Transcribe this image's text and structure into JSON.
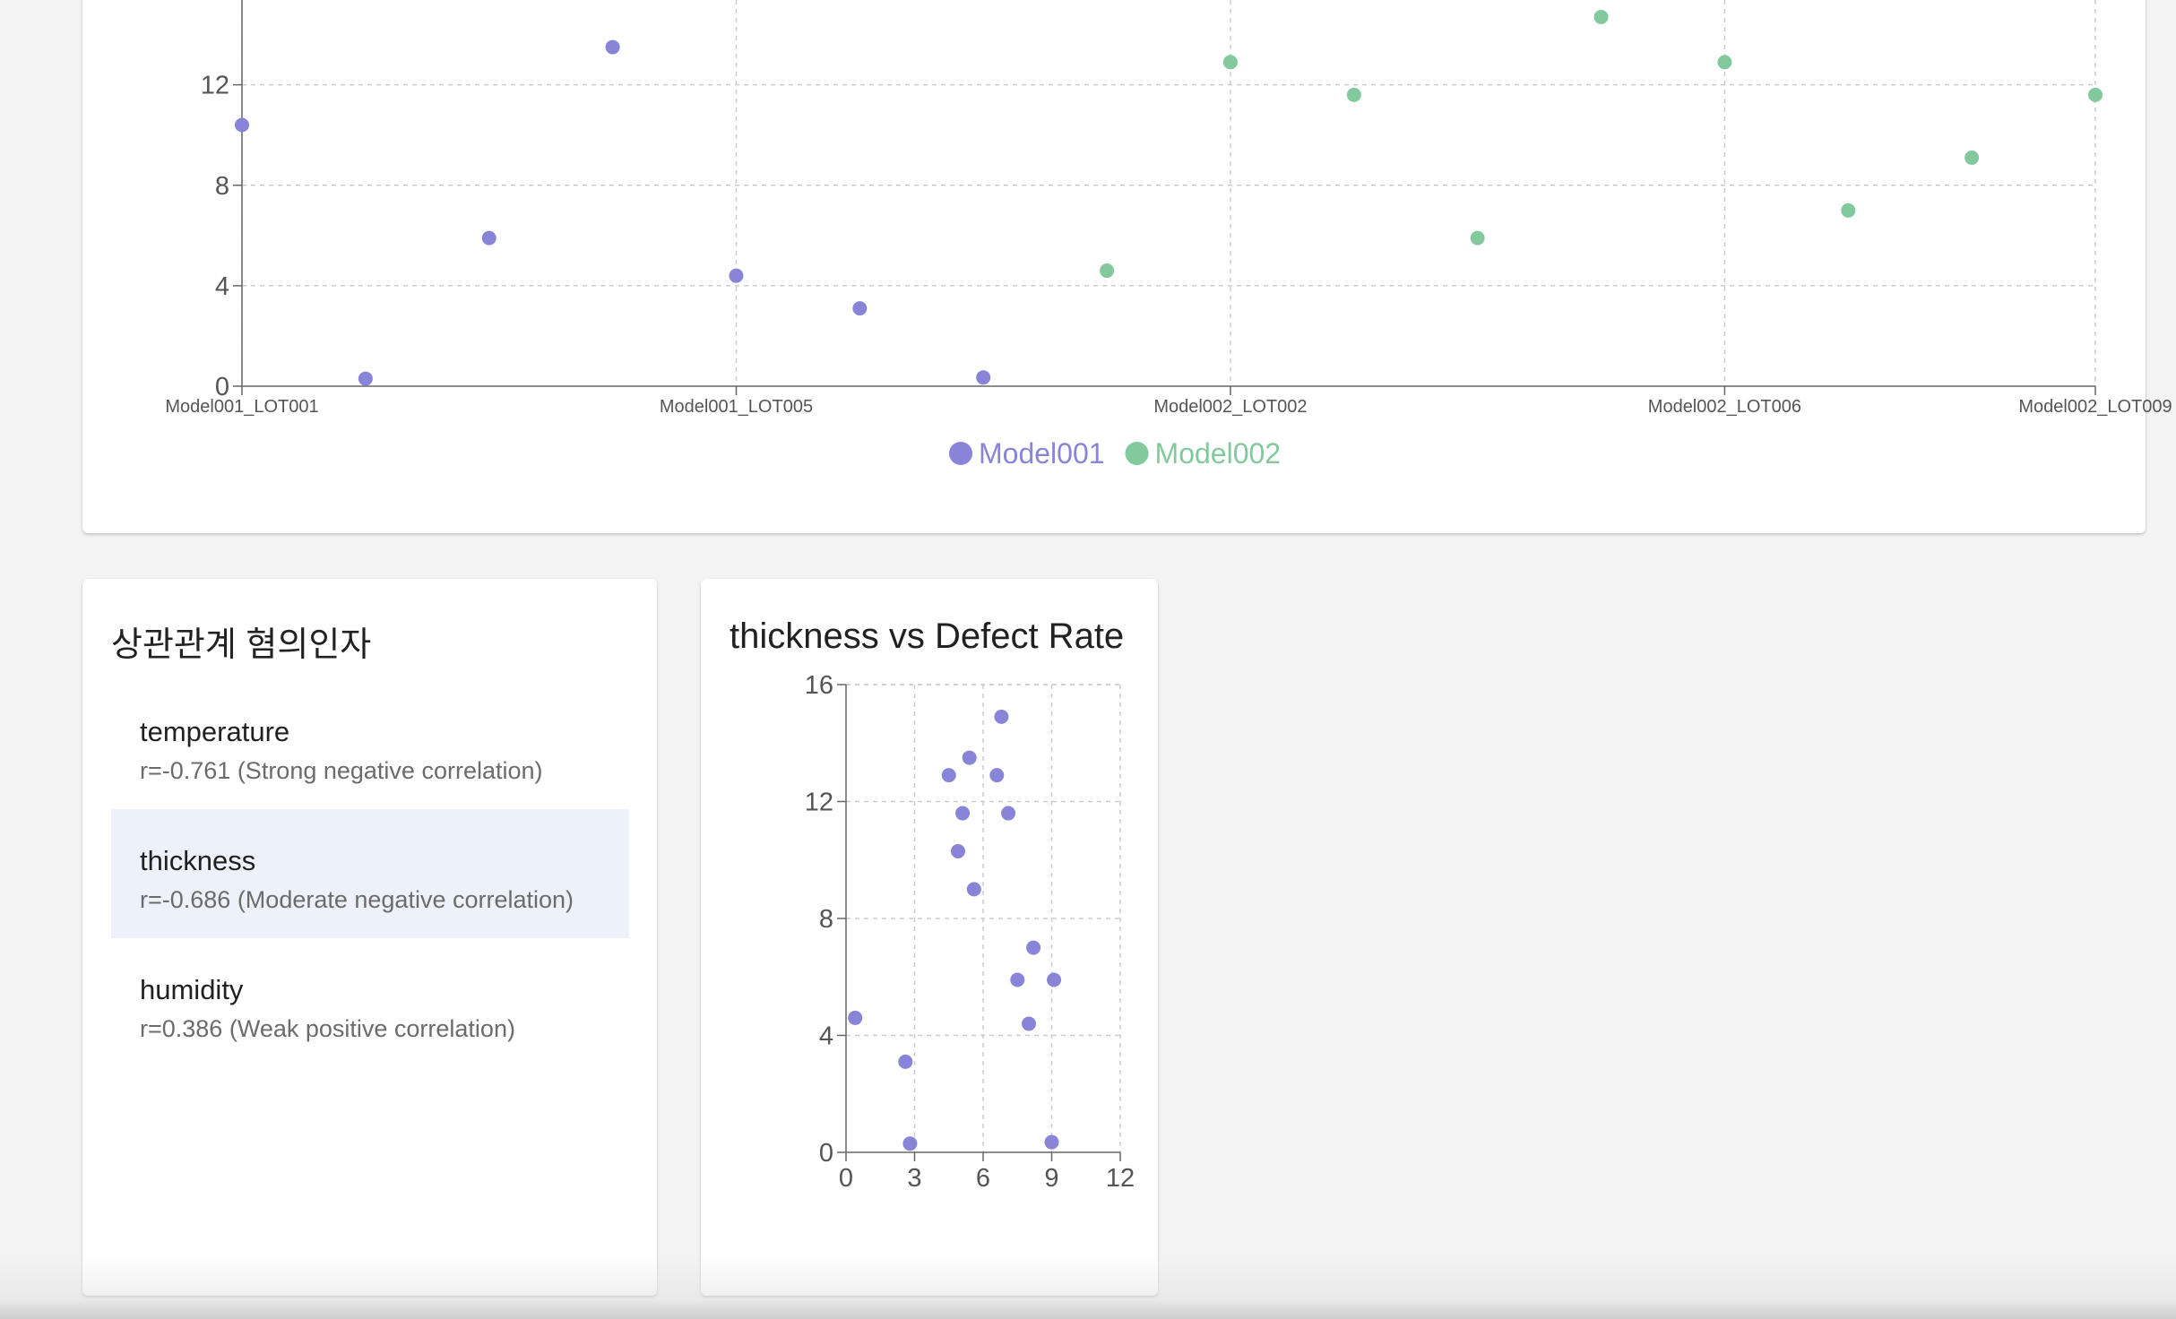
{
  "colors": {
    "model001": "#8884d8",
    "model002": "#82ca9d",
    "selected_bg": "#edf2fa",
    "grid": "#cccccc",
    "axis": "#666666"
  },
  "chart_data": [
    {
      "type": "scatter",
      "title": "",
      "xlabel": "",
      "ylabel": "",
      "x_tick_labels": [
        "Model001_LOT001",
        "Model001_LOT005",
        "Model002_LOT002",
        "Model002_LOT006",
        "Model002_LOT009"
      ],
      "y_ticks": [
        0,
        4,
        8,
        12
      ],
      "ylim": [
        0,
        16
      ],
      "grid": true,
      "legend_position": "bottom-center",
      "series": [
        {
          "name": "Model001",
          "color": "#8884d8",
          "points": [
            {
              "x": "Model001_LOT001",
              "y": 10.4
            },
            {
              "x": "Model001_LOT002",
              "y": 0.3
            },
            {
              "x": "Model001_LOT003",
              "y": 5.9
            },
            {
              "x": "Model001_LOT004",
              "y": 13.5
            },
            {
              "x": "Model001_LOT005",
              "y": 4.4
            },
            {
              "x": "Model001_LOT006",
              "y": 3.1
            },
            {
              "x": "Model001_LOT007",
              "y": 0.35
            }
          ]
        },
        {
          "name": "Model002",
          "color": "#82ca9d",
          "points": [
            {
              "x": "Model001_LOT008",
              "y": 4.6
            },
            {
              "x": "Model002_LOT002",
              "y": 12.9
            },
            {
              "x": "Model002_LOT003",
              "y": 11.6
            },
            {
              "x": "Model002_LOT004",
              "y": 5.9
            },
            {
              "x": "Model002_LOT005",
              "y": 14.7
            },
            {
              "x": "Model002_LOT006",
              "y": 12.9
            },
            {
              "x": "Model002_LOT007",
              "y": 7.0
            },
            {
              "x": "Model002_LOT008",
              "y": 9.1
            },
            {
              "x": "Model002_LOT009",
              "y": 11.6
            }
          ]
        }
      ]
    },
    {
      "type": "scatter",
      "title": "thickness vs Defect Rate",
      "xlabel": "",
      "ylabel": "",
      "x_ticks": [
        0,
        3,
        6,
        9,
        12
      ],
      "y_ticks": [
        0,
        4,
        8,
        12,
        16
      ],
      "xlim": [
        0,
        12
      ],
      "ylim": [
        0,
        16
      ],
      "grid": true,
      "series": [
        {
          "color": "#8884d8",
          "points": [
            [
              6.8,
              14.9
            ],
            [
              5.4,
              13.5
            ],
            [
              4.5,
              12.9
            ],
            [
              6.6,
              12.9
            ],
            [
              5.1,
              11.6
            ],
            [
              7.1,
              11.6
            ],
            [
              4.9,
              10.3
            ],
            [
              5.6,
              9.0
            ],
            [
              8.2,
              7.0
            ],
            [
              7.5,
              5.9
            ],
            [
              9.1,
              5.9
            ],
            [
              8.0,
              4.4
            ],
            [
              0.4,
              4.6
            ],
            [
              2.6,
              3.1
            ],
            [
              2.8,
              0.3
            ],
            [
              9.0,
              0.35
            ]
          ]
        }
      ]
    }
  ],
  "factors": {
    "title": "상관관계 혐의인자",
    "items": [
      {
        "name": "temperature",
        "corr": "r=-0.761 (Strong negative correlation)"
      },
      {
        "name": "thickness",
        "corr": "r=-0.686 (Moderate negative correlation)"
      },
      {
        "name": "humidity",
        "corr": "r=0.386 (Weak positive correlation)"
      }
    ]
  }
}
